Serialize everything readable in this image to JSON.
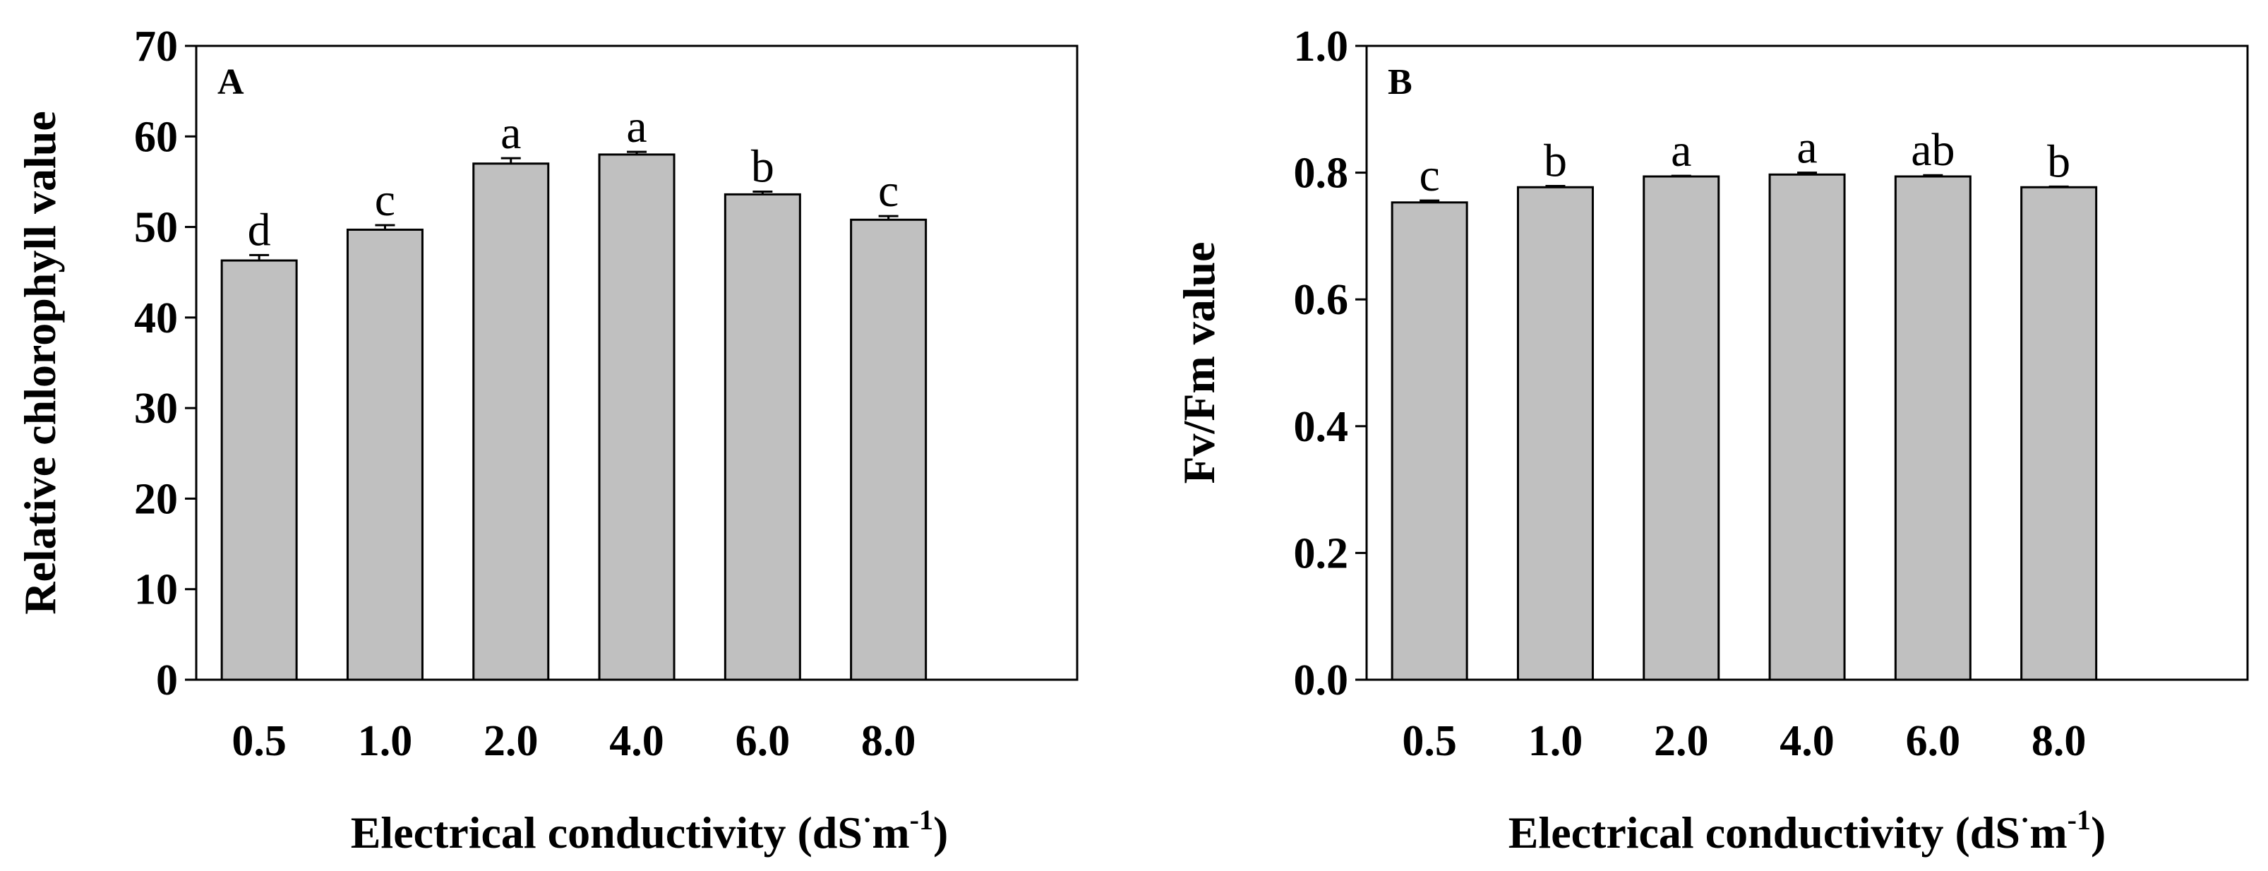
{
  "chart_data": [
    {
      "type": "bar",
      "panel_label": "A",
      "categories": [
        "0.5",
        "1.0",
        "2.0",
        "4.0",
        "6.0",
        "8.0"
      ],
      "values": [
        46.3,
        49.7,
        57.0,
        58.0,
        53.6,
        50.8
      ],
      "errors": [
        0.6,
        0.5,
        0.6,
        0.3,
        0.3,
        0.4
      ],
      "letters": [
        "d",
        "c",
        "a",
        "a",
        "b",
        "c"
      ],
      "ylabel": "Relative chlorophyll value",
      "xlabel": "Electrical conductivity (dS·m-1)",
      "xlabel_main": "Electrical conductivity (dS",
      "xlabel_unit": "m",
      "xlabel_exp": "-1",
      "xlabel_close": ")",
      "ylim": [
        0,
        70
      ],
      "yticks": [
        0,
        10,
        20,
        30,
        40,
        50,
        60,
        70
      ],
      "ytick_labels": [
        "0",
        "10",
        "20",
        "30",
        "40",
        "50",
        "60",
        "70"
      ],
      "bar_color": "#c0c0c0"
    },
    {
      "type": "bar",
      "panel_label": "B",
      "categories": [
        "0.5",
        "1.0",
        "2.0",
        "4.0",
        "6.0",
        "8.0"
      ],
      "values": [
        0.753,
        0.777,
        0.794,
        0.797,
        0.794,
        0.777
      ],
      "errors": [
        0.003,
        0.002,
        0.001,
        0.003,
        0.002,
        0.001
      ],
      "letters": [
        "c",
        "b",
        "a",
        "a",
        "ab",
        "b"
      ],
      "ylabel": "Fv/Fm value",
      "xlabel": "Electrical conductivity (dS·m-1)",
      "xlabel_main": "Electrical conductivity (dS",
      "xlabel_unit": "m",
      "xlabel_exp": "-1",
      "xlabel_close": ")",
      "ylim": [
        0,
        1.0
      ],
      "yticks": [
        0,
        0.2,
        0.4,
        0.6,
        0.8,
        1.0
      ],
      "ytick_labels": [
        "0.0",
        "0.2",
        "0.4",
        "0.6",
        "0.8",
        "1.0"
      ],
      "bar_color": "#c0c0c0"
    }
  ]
}
